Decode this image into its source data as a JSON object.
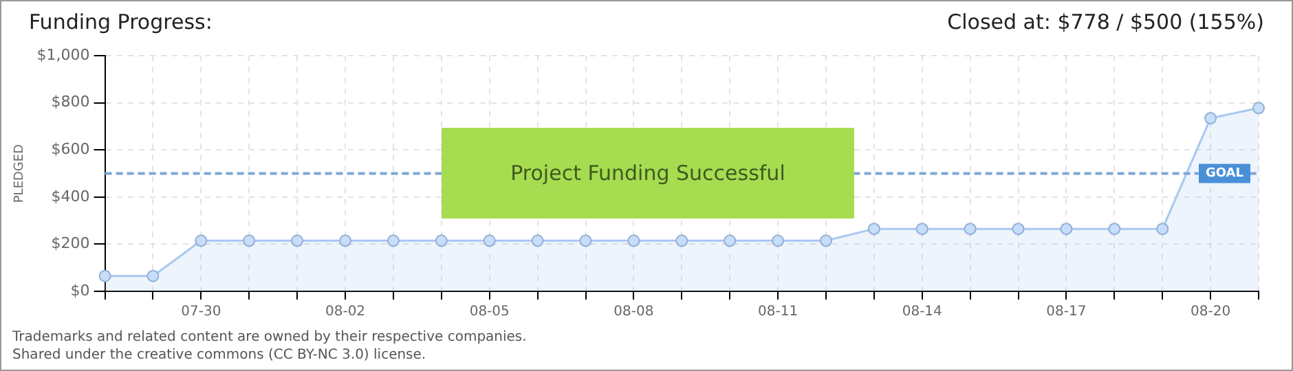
{
  "chart_data": {
    "type": "area",
    "title": "Funding Progress:",
    "subtitle": "Closed at: $778 / $500 (155%)",
    "ylabel": "PLEDGED",
    "categories": [
      null,
      null,
      "07-30",
      null,
      null,
      "08-02",
      null,
      null,
      "08-05",
      null,
      null,
      "08-08",
      null,
      null,
      "08-11",
      null,
      null,
      "08-14",
      null,
      null,
      "08-17",
      null,
      null,
      "08-20",
      null
    ],
    "series": [
      {
        "color": "#a8c8f0",
        "values": [
          65,
          65,
          215,
          215,
          215,
          215,
          215,
          215,
          215,
          215,
          215,
          215,
          215,
          215,
          215,
          215,
          265,
          265,
          265,
          265,
          265,
          265,
          265,
          735,
          778
        ]
      }
    ],
    "ylim": [
      0,
      1000
    ],
    "yticks": [
      {
        "value": 0,
        "label": "$0"
      },
      {
        "value": 200,
        "label": "$200"
      },
      {
        "value": 400,
        "label": "$400"
      },
      {
        "value": 600,
        "label": "$600"
      },
      {
        "value": 800,
        "label": "$800"
      },
      {
        "value": 1000,
        "label": "$1,000"
      }
    ],
    "grid": true,
    "marker": "circle",
    "ref_lines": [
      {
        "axis": "y",
        "value": 500,
        "label": "GOAL",
        "color": "#7fa6d6",
        "line_style": "dashed"
      }
    ],
    "annotations": [
      "Project Funding Successful",
      "Trademarks and related content are owned by their respective companies.",
      "Shared under the creative commons (CC BY-NC 3.0) license."
    ]
  }
}
